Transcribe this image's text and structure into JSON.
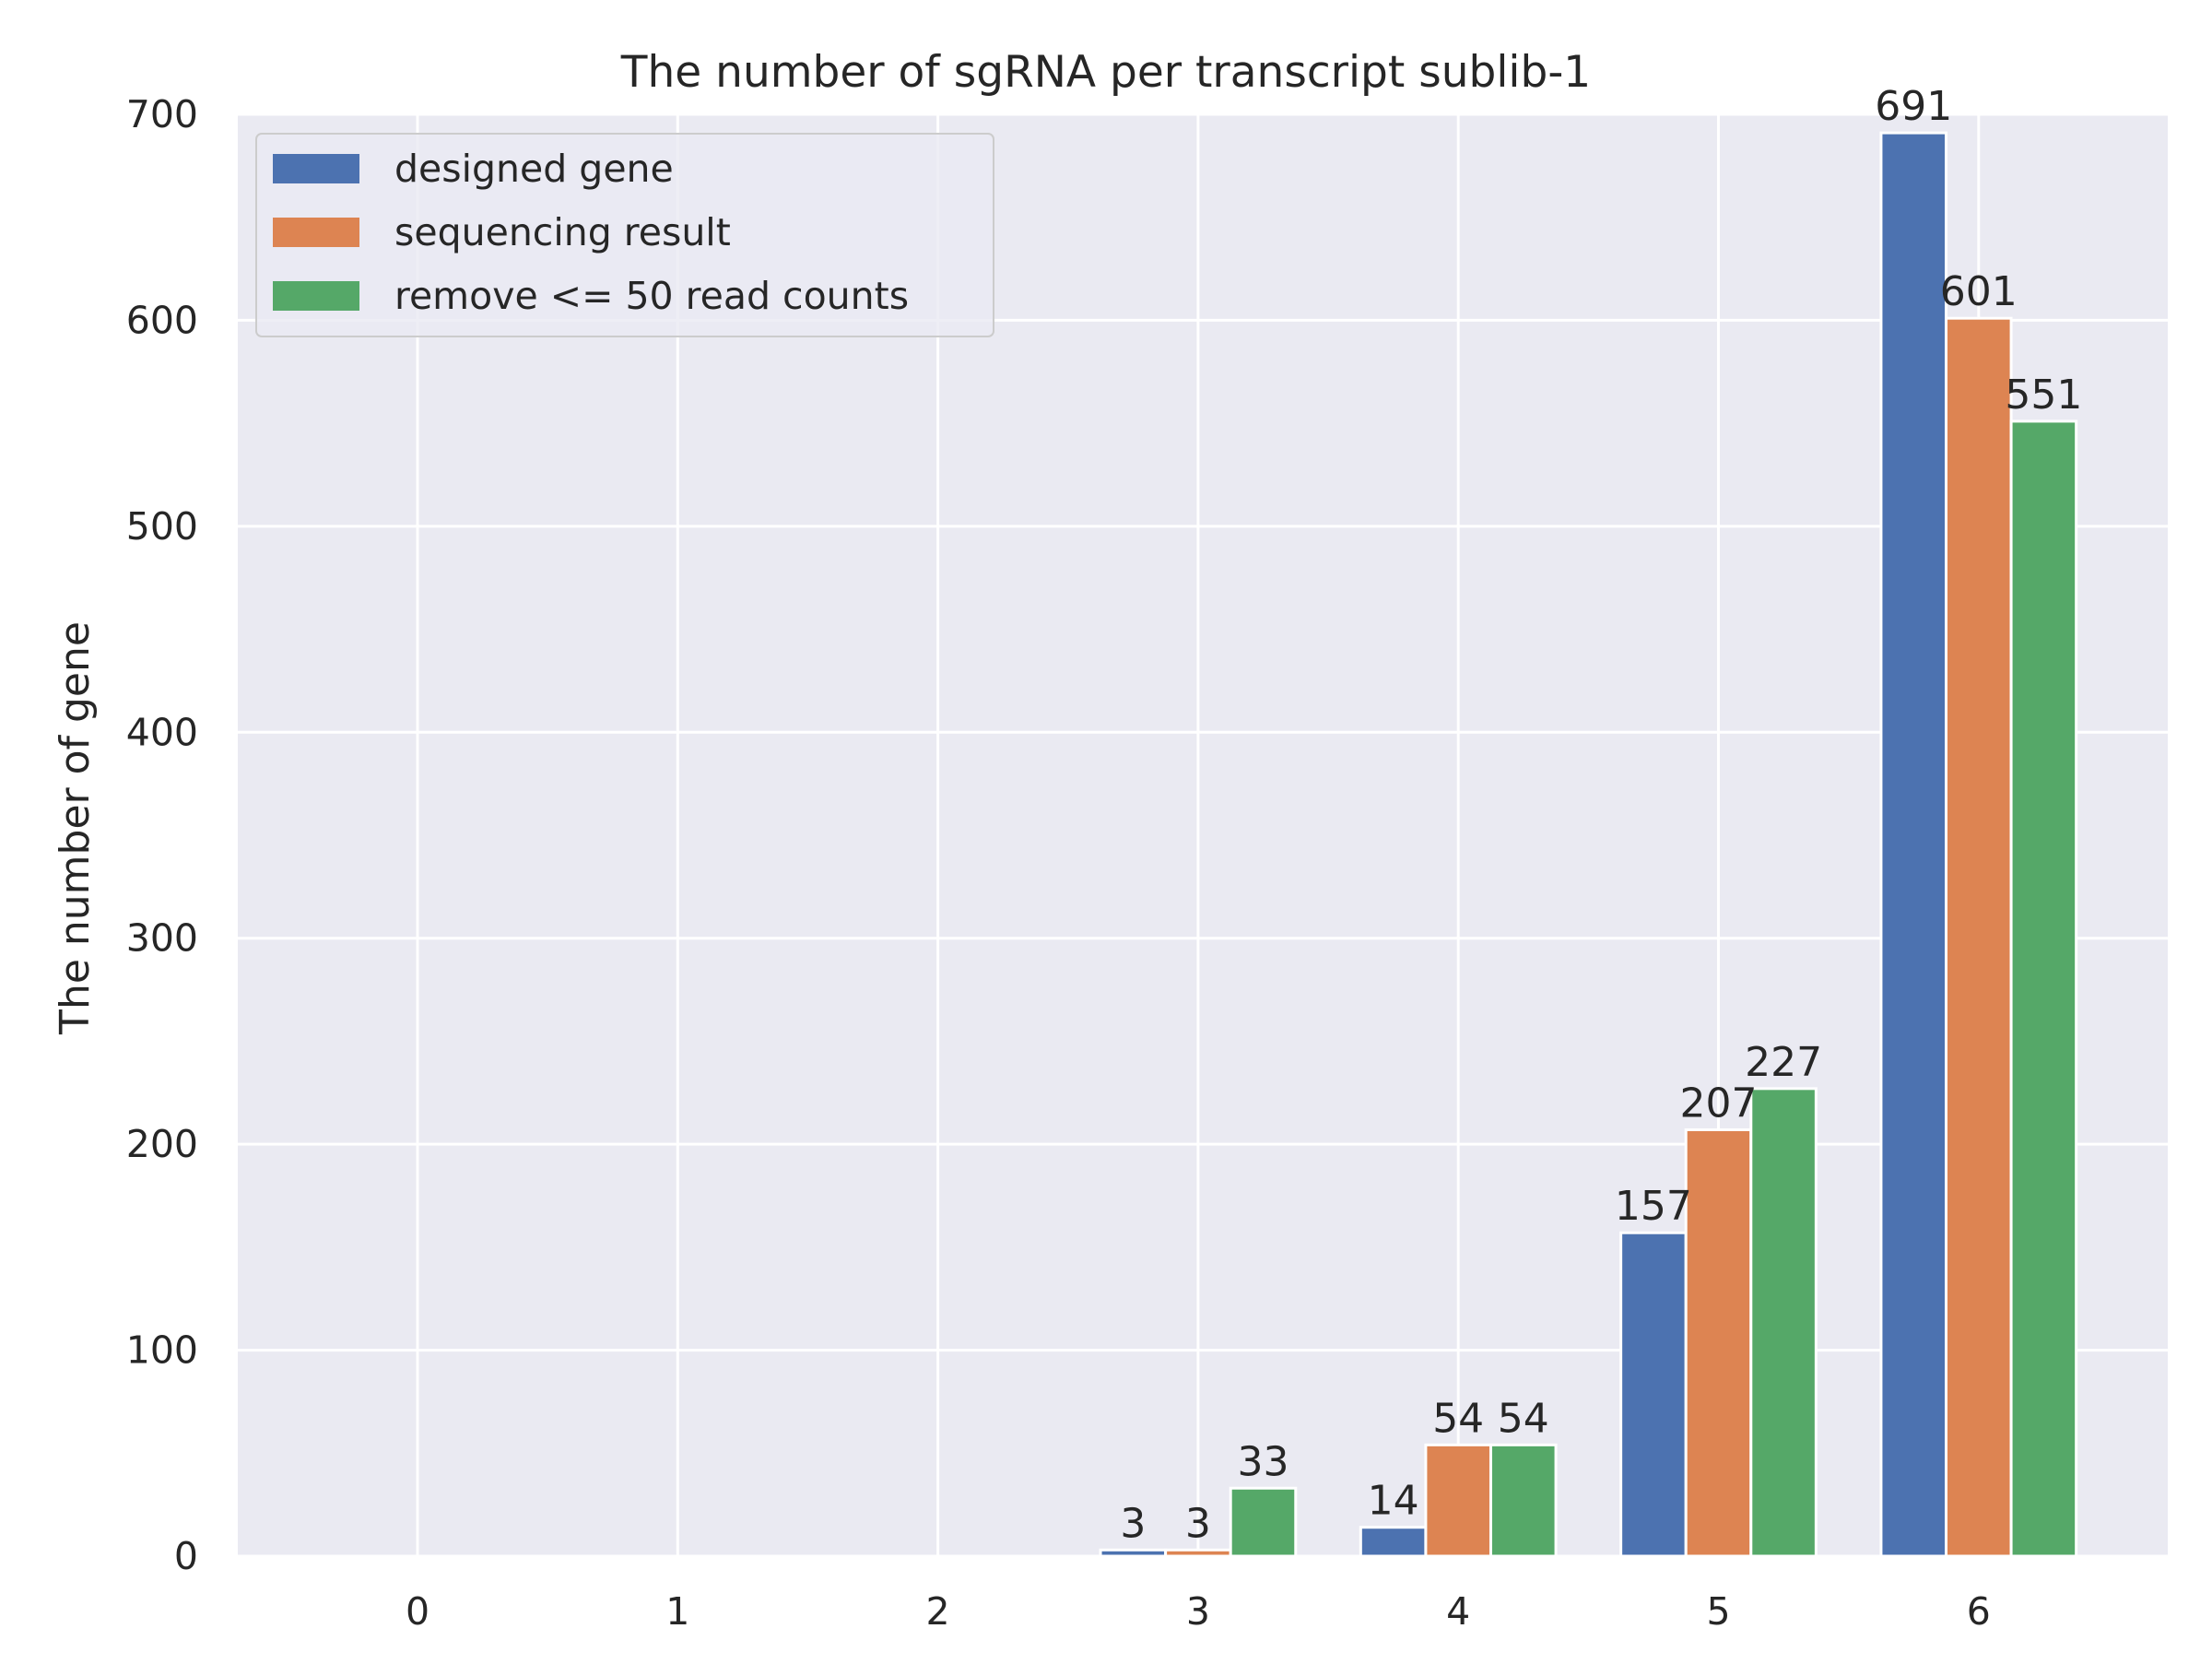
{
  "chart_data": {
    "type": "bar",
    "title": "The number of sgRNA per transcript sublib-1",
    "xlabel": "",
    "ylabel": "The number of gene",
    "categories": [
      "0",
      "1",
      "2",
      "3",
      "4",
      "5",
      "6"
    ],
    "series": [
      {
        "name": "designed gene",
        "color": "#4c72b0",
        "values": [
          0,
          0,
          0,
          3,
          14,
          157,
          691
        ]
      },
      {
        "name": "sequencing result",
        "color": "#dd8452",
        "values": [
          0,
          0,
          0,
          3,
          54,
          207,
          601
        ]
      },
      {
        "name": "remove <= 50 read counts",
        "color": "#55a868",
        "values": [
          0,
          0,
          0,
          33,
          54,
          227,
          551
        ]
      }
    ],
    "data_labels": [
      [
        null,
        null,
        null,
        "3",
        "14",
        "157",
        "691"
      ],
      [
        null,
        null,
        null,
        "3",
        "54",
        "207",
        "601"
      ],
      [
        null,
        null,
        null,
        "33",
        "54",
        "227",
        "551"
      ]
    ],
    "ylim": [
      0,
      700
    ],
    "yticks": [
      0,
      100,
      200,
      300,
      400,
      500,
      600,
      700
    ],
    "grid": true,
    "legend": "top-left",
    "background_color": "#eaeaf2",
    "grid_color": "#ffffff"
  }
}
